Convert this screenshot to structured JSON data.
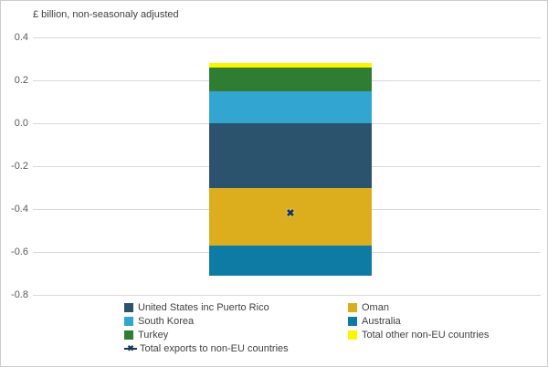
{
  "title": "£ billion, non-seasonaly adjusted",
  "chart_data": {
    "type": "bar",
    "stacked": true,
    "title": "£ billion, non-seasonaly adjusted",
    "xlabel": "",
    "ylabel": "£ billion",
    "ylim": [
      -0.8,
      0.4
    ],
    "y_ticks": [
      "0.4",
      "0.2",
      "0.0",
      "-0.2",
      "-0.4",
      "-0.6",
      "-0.8"
    ],
    "grid": true,
    "legend_position": "bottom",
    "categories": [
      ""
    ],
    "positive_segments": [
      {
        "name": "South Korea",
        "value": 0.15,
        "color": "#33a5d1"
      },
      {
        "name": "Turkey",
        "value": 0.11,
        "color": "#2e7d33"
      },
      {
        "name": "Total other non-EU countries",
        "value": 0.02,
        "color": "#fcf500"
      }
    ],
    "negative_segments": [
      {
        "name": "United States inc Puerto Rico",
        "value": -0.3,
        "color": "#2c536e"
      },
      {
        "name": "Oman",
        "value": -0.27,
        "color": "#dcae1d"
      },
      {
        "name": "Australia",
        "value": -0.14,
        "color": "#0e7ba4"
      }
    ],
    "marker": {
      "name": "Total exports to non-EU countries",
      "value": -0.42,
      "color": "#16365c",
      "symbol": "x"
    }
  },
  "legend": {
    "columns": [
      [
        {
          "label": "United States inc Puerto Rico",
          "color": "#2c536e",
          "type": "square"
        },
        {
          "label": "South Korea",
          "color": "#33a5d1",
          "type": "square"
        },
        {
          "label": "Turkey",
          "color": "#2e7d33",
          "type": "square"
        },
        {
          "label": "Total exports to non-EU countries",
          "color": "#16365c",
          "type": "line-x-marker"
        }
      ],
      [
        {
          "label": "Oman",
          "color": "#dcae1d",
          "type": "square"
        },
        {
          "label": "Australia",
          "color": "#0e7ba4",
          "type": "square"
        },
        {
          "label": "Total other non-EU countries",
          "color": "#fcf500",
          "type": "square"
        }
      ]
    ]
  }
}
